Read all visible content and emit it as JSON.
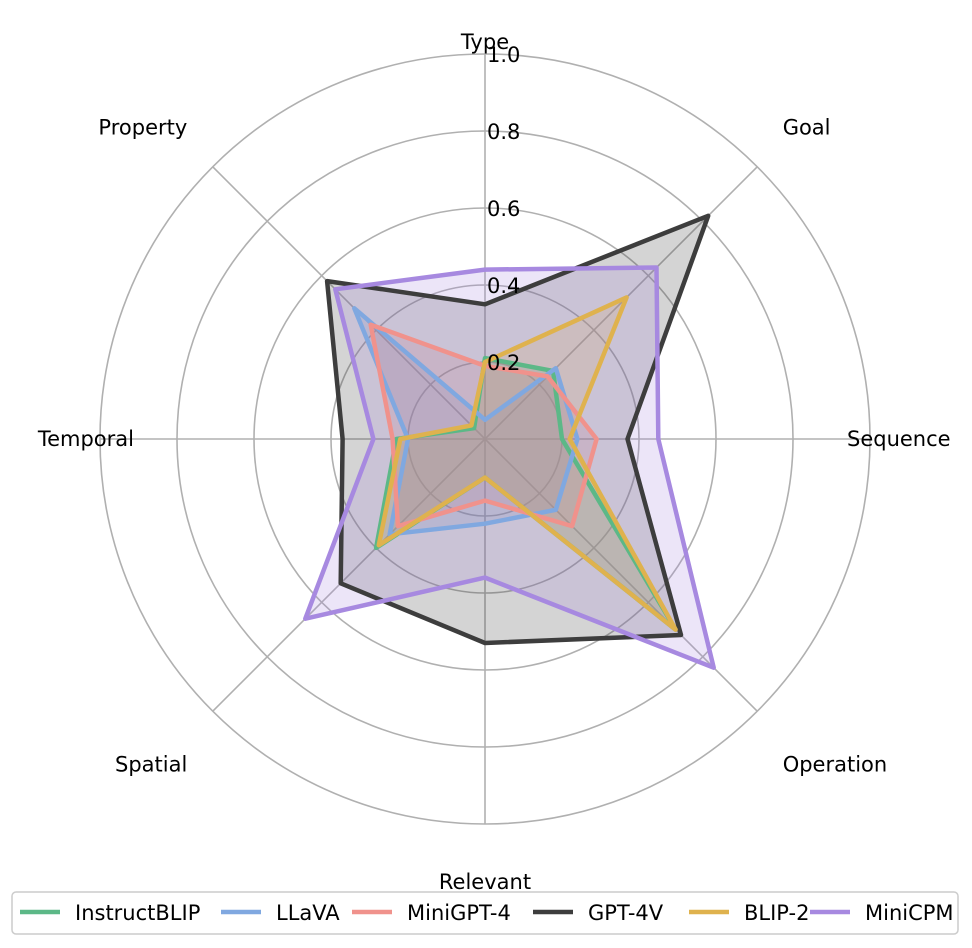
{
  "chart_data": {
    "type": "radar",
    "axes": [
      "Type",
      "Goal",
      "Sequence",
      "Operation",
      "Relevant",
      "Spatial",
      "Temporal",
      "Property"
    ],
    "rlim": [
      0,
      1.0
    ],
    "rticks": [
      "0.2",
      "0.4",
      "0.6",
      "0.8",
      "1.0"
    ],
    "grid": true,
    "legend_position": "bottom",
    "series": [
      {
        "name": "InstructBLIP",
        "color": "#5cb887",
        "values": [
          0.21,
          0.25,
          0.2,
          0.7,
          0.1,
          0.4,
          0.23,
          0.04
        ]
      },
      {
        "name": "LLaVA",
        "color": "#80a8e0",
        "values": [
          0.05,
          0.26,
          0.24,
          0.26,
          0.22,
          0.35,
          0.2,
          0.48
        ]
      },
      {
        "name": "MiniGPT-4",
        "color": "#f0928c",
        "values": [
          0.19,
          0.23,
          0.29,
          0.32,
          0.16,
          0.32,
          0.24,
          0.42
        ]
      },
      {
        "name": "GPT-4V",
        "color": "#3d3d3d",
        "values": [
          0.35,
          0.82,
          0.37,
          0.72,
          0.53,
          0.53,
          0.37,
          0.58
        ]
      },
      {
        "name": "BLIP-2",
        "color": "#dfb24e",
        "values": [
          0.2,
          0.52,
          0.22,
          0.7,
          0.1,
          0.39,
          0.22,
          0.05
        ]
      },
      {
        "name": "MiniCPM",
        "color": "#a789e0",
        "values": [
          0.44,
          0.63,
          0.45,
          0.84,
          0.36,
          0.66,
          0.29,
          0.55
        ]
      }
    ]
  }
}
